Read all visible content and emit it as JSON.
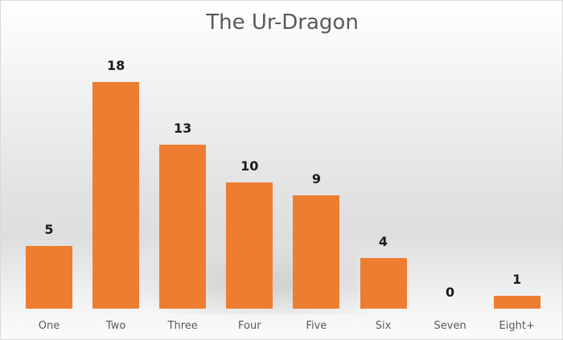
{
  "chart_data": {
    "type": "bar",
    "title": "The Ur-Dragon",
    "categories": [
      "One",
      "Two",
      "Three",
      "Four",
      "Five",
      "Six",
      "Seven",
      "Eight+"
    ],
    "values": [
      5,
      18,
      13,
      10,
      9,
      4,
      0,
      1
    ],
    "xlabel": "",
    "ylabel": "",
    "ylim": [
      0,
      18
    ],
    "grid": false,
    "legend": "none",
    "data_labels": true,
    "bar_color": "#ed7d31"
  },
  "colors": {
    "bar": "#ed7d31",
    "title": "#595959",
    "axis_text": "#595959",
    "data_label": "#1a1a1a"
  }
}
